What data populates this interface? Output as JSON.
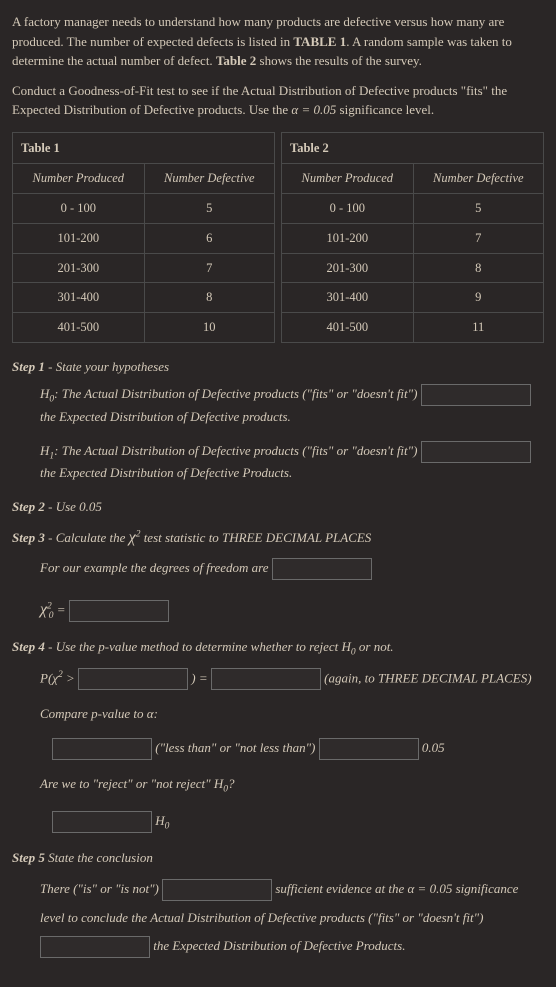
{
  "intro": {
    "p1a": "A factory manager needs to understand how many products are defective versus how many are produced.  The number of expected defects is listed in ",
    "p1b": "TABLE 1",
    "p1c": ".  A random sample was taken to determine the actual number of defect.  ",
    "p1d": "Table 2",
    "p1e": " shows the results of the survey.",
    "p2a": "Conduct a Goodness-of-Fit test to see if the Actual Distribution of Defective products \"fits\" the Expected Distribution of Defective products.  Use the ",
    "alpha_eq": "α = 0.05",
    "p2b": " significance level."
  },
  "table1": {
    "caption": "Table 1",
    "headers": [
      "Number Produced",
      "Number Defective"
    ],
    "rows": [
      [
        "0  - 100",
        "5"
      ],
      [
        "101-200",
        "6"
      ],
      [
        "201-300",
        "7"
      ],
      [
        "301-400",
        "8"
      ],
      [
        "401-500",
        "10"
      ]
    ]
  },
  "table2": {
    "caption": "Table 2",
    "headers": [
      "Number Produced",
      "Number Defective"
    ],
    "rows": [
      [
        "0  - 100",
        "5"
      ],
      [
        "101-200",
        "7"
      ],
      [
        "201-300",
        "8"
      ],
      [
        "301-400",
        "9"
      ],
      [
        "401-500",
        "11"
      ]
    ]
  },
  "step1": {
    "hdr_num": "Step 1",
    "hdr_txt": " - State your hypotheses",
    "h0a": "H",
    "h0sub": "0",
    "h0b": ":  The Actual Distribution of Defective products (\"fits\" or \"doesn't fit\")",
    "h0c": " the Expected Distribution of Defective products.",
    "h1a": "H",
    "h1sub": "1",
    "h1b": ":  The Actual Distribution of Defective products (\"fits\" or \"doesn't fit\")",
    "h1c": " the Expected Distribution of Defective Products."
  },
  "step2": {
    "hdr_num": "Step 2",
    "hdr_txt": " - Use  0.05"
  },
  "step3": {
    "hdr_num": "Step 3",
    "hdr_txt_a": " - Calculate the ",
    "chi": "χ",
    "sup2": "2",
    "hdr_txt_b": " test statistic to THREE DECIMAL PLACES",
    "dof": "For our example the degrees of freedom are ",
    "chi2_lbl_a": "χ",
    "chi2_sup": "2",
    "chi2_sub": "0",
    "chi2_eq": " = "
  },
  "step4": {
    "hdr_num": "Step 4",
    "hdr_txt_a": " - Use the p-value method to determine whether to reject H",
    "sub0": "0",
    "hdr_txt_b": " or not.",
    "p_a": "P(χ",
    "p_sup": "2",
    "p_gt": " > ",
    "p_close": ") = ",
    "p_note": " (again, to THREE DECIMAL PLACES)",
    "compare": "Compare p-value to α:",
    "less": " (\"less than\" or \"not less than\") ",
    "val005": " 0.05",
    "reject_q_a": "Are we to \"reject\" or \"not reject\" H",
    "reject_q_sub": "0",
    "reject_q_b": "?",
    "h0_trail": " H",
    "h0_trail_sub": "0"
  },
  "step5": {
    "hdr_num": "Step 5",
    "hdr_txt": " State the conclusion",
    "c1": "There (\"is\" or \"is not\") ",
    "c2": " sufficient evidence at the ",
    "alpha_eq": "α = 0.05",
    "c3": " significance level to conclude the Actual Distribution of Defective products (\"fits\" or \"doesn't fit\") ",
    "c4": " the Expected Distribution of Defective Products."
  }
}
